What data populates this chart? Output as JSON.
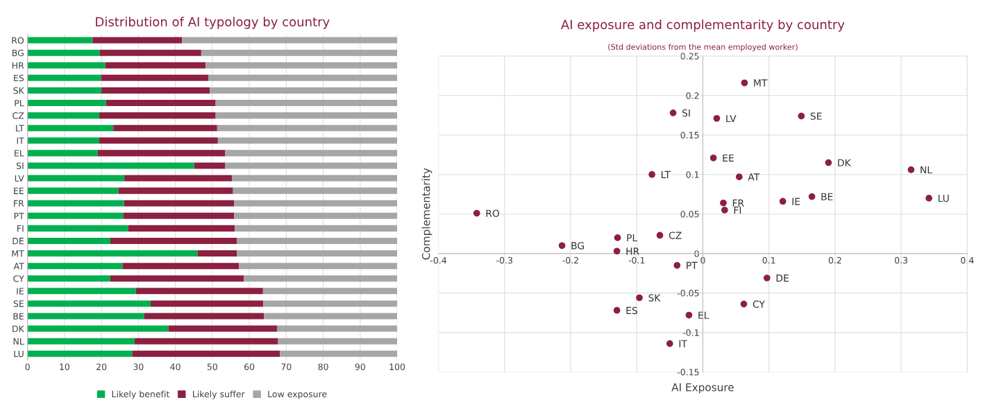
{
  "chart_data": [
    {
      "type": "bar",
      "title": "Distribution of AI typology by country",
      "orientation": "horizontal",
      "stacked": true,
      "categories": [
        "RO",
        "BG",
        "HR",
        "ES",
        "SK",
        "PL",
        "CZ",
        "LT",
        "IT",
        "EL",
        "SI",
        "LV",
        "EE",
        "FR",
        "PT",
        "FI",
        "DE",
        "MT",
        "AT",
        "CY",
        "IE",
        "SE",
        "BE",
        "DK",
        "NL",
        "LU"
      ],
      "series": [
        {
          "name": "Likely benefit",
          "color": "#00b050",
          "values": [
            17.6,
            19.5,
            21.0,
            19.9,
            20.0,
            21.2,
            19.4,
            23.2,
            19.4,
            19.0,
            45.1,
            26.2,
            24.6,
            26.1,
            25.9,
            27.2,
            22.4,
            46.0,
            25.7,
            22.4,
            29.3,
            33.3,
            31.6,
            38.1,
            29.0,
            28.3
          ]
        },
        {
          "name": "Likely suffer",
          "color": "#8b2040",
          "values": [
            24.2,
            27.5,
            27.2,
            29.0,
            29.3,
            29.7,
            31.5,
            28.1,
            32.1,
            34.5,
            8.4,
            29.1,
            31.0,
            29.8,
            30.0,
            28.9,
            34.2,
            10.6,
            31.5,
            36.1,
            34.4,
            30.5,
            32.4,
            29.4,
            38.8,
            40.0
          ]
        },
        {
          "name": "Low exposure",
          "color": "#a6a6a6",
          "values": [
            58.2,
            53.0,
            51.8,
            51.1,
            50.7,
            49.1,
            49.1,
            48.7,
            48.5,
            46.5,
            46.5,
            44.7,
            44.4,
            44.1,
            44.1,
            43.9,
            43.4,
            43.4,
            42.8,
            41.5,
            36.3,
            36.2,
            36.0,
            32.5,
            32.2,
            31.7
          ]
        }
      ],
      "xlim": [
        0,
        100
      ],
      "xticks": [
        0,
        10,
        20,
        30,
        40,
        50,
        60,
        70,
        80,
        90,
        100
      ],
      "grid": "x",
      "legend": "bottom"
    },
    {
      "type": "scatter",
      "title": "AI exposure and complementarity by country",
      "subtitle": "(Std deviations from the mean employed worker)",
      "xlabel": "AI Exposure",
      "ylabel": "Complementarity",
      "marker": "circle",
      "series": [
        {
          "color": "#8b2040",
          "x": [
            0.063,
            -0.045,
            0.021,
            0.149,
            0.016,
            0.19,
            0.315,
            -0.077,
            0.055,
            0.165,
            0.342,
            0.121,
            0.031,
            0.033,
            -0.342,
            -0.129,
            -0.065,
            -0.213,
            -0.13,
            -0.039,
            0.097,
            -0.096,
            0.062,
            -0.13,
            -0.021,
            -0.05
          ],
          "values": [
            0.216,
            0.178,
            0.171,
            0.174,
            0.121,
            0.115,
            0.106,
            0.1,
            0.097,
            0.072,
            0.07,
            0.066,
            0.064,
            0.055,
            0.051,
            0.02,
            0.023,
            0.01,
            0.003,
            -0.015,
            -0.031,
            -0.056,
            -0.064,
            -0.072,
            -0.078,
            -0.114
          ]
        }
      ],
      "annotations": [
        {
          "text": "MT",
          "x": 0.063,
          "y": 0.216
        },
        {
          "text": "SI",
          "x": -0.045,
          "y": 0.178
        },
        {
          "text": "LV",
          "x": 0.021,
          "y": 0.171
        },
        {
          "text": "SE",
          "x": 0.149,
          "y": 0.174
        },
        {
          "text": "EE",
          "x": 0.016,
          "y": 0.121
        },
        {
          "text": "DK",
          "x": 0.19,
          "y": 0.115
        },
        {
          "text": "NL",
          "x": 0.315,
          "y": 0.106
        },
        {
          "text": "LT",
          "x": -0.077,
          "y": 0.1
        },
        {
          "text": "AT",
          "x": 0.055,
          "y": 0.097
        },
        {
          "text": "BE",
          "x": 0.165,
          "y": 0.072
        },
        {
          "text": "LU",
          "x": 0.342,
          "y": 0.07
        },
        {
          "text": "IE",
          "x": 0.121,
          "y": 0.066
        },
        {
          "text": "FR",
          "x": 0.031,
          "y": 0.064
        },
        {
          "text": "FI",
          "x": 0.033,
          "y": 0.055
        },
        {
          "text": "RO",
          "x": -0.342,
          "y": 0.051
        },
        {
          "text": "PL",
          "x": -0.129,
          "y": 0.02
        },
        {
          "text": "CZ",
          "x": -0.065,
          "y": 0.023
        },
        {
          "text": "BG",
          "x": -0.213,
          "y": 0.01
        },
        {
          "text": "HR",
          "x": -0.13,
          "y": 0.003
        },
        {
          "text": "PT",
          "x": -0.039,
          "y": -0.015
        },
        {
          "text": "DE",
          "x": 0.097,
          "y": -0.031
        },
        {
          "text": "SK",
          "x": -0.096,
          "y": -0.056
        },
        {
          "text": "CY",
          "x": 0.062,
          "y": -0.064
        },
        {
          "text": "ES",
          "x": -0.13,
          "y": -0.072
        },
        {
          "text": "EL",
          "x": -0.021,
          "y": -0.078
        },
        {
          "text": "IT",
          "x": -0.05,
          "y": -0.114
        }
      ],
      "xlim": [
        -0.4,
        0.4
      ],
      "xticks": [
        -0.4,
        -0.3,
        -0.2,
        -0.1,
        0,
        0.1,
        0.2,
        0.3,
        0.4
      ],
      "ylim": [
        -0.15,
        0.25
      ],
      "yticks": [
        -0.15,
        -0.1,
        -0.05,
        0,
        0.05,
        0.1,
        0.15,
        0.2,
        0.25
      ],
      "grid": true
    }
  ]
}
